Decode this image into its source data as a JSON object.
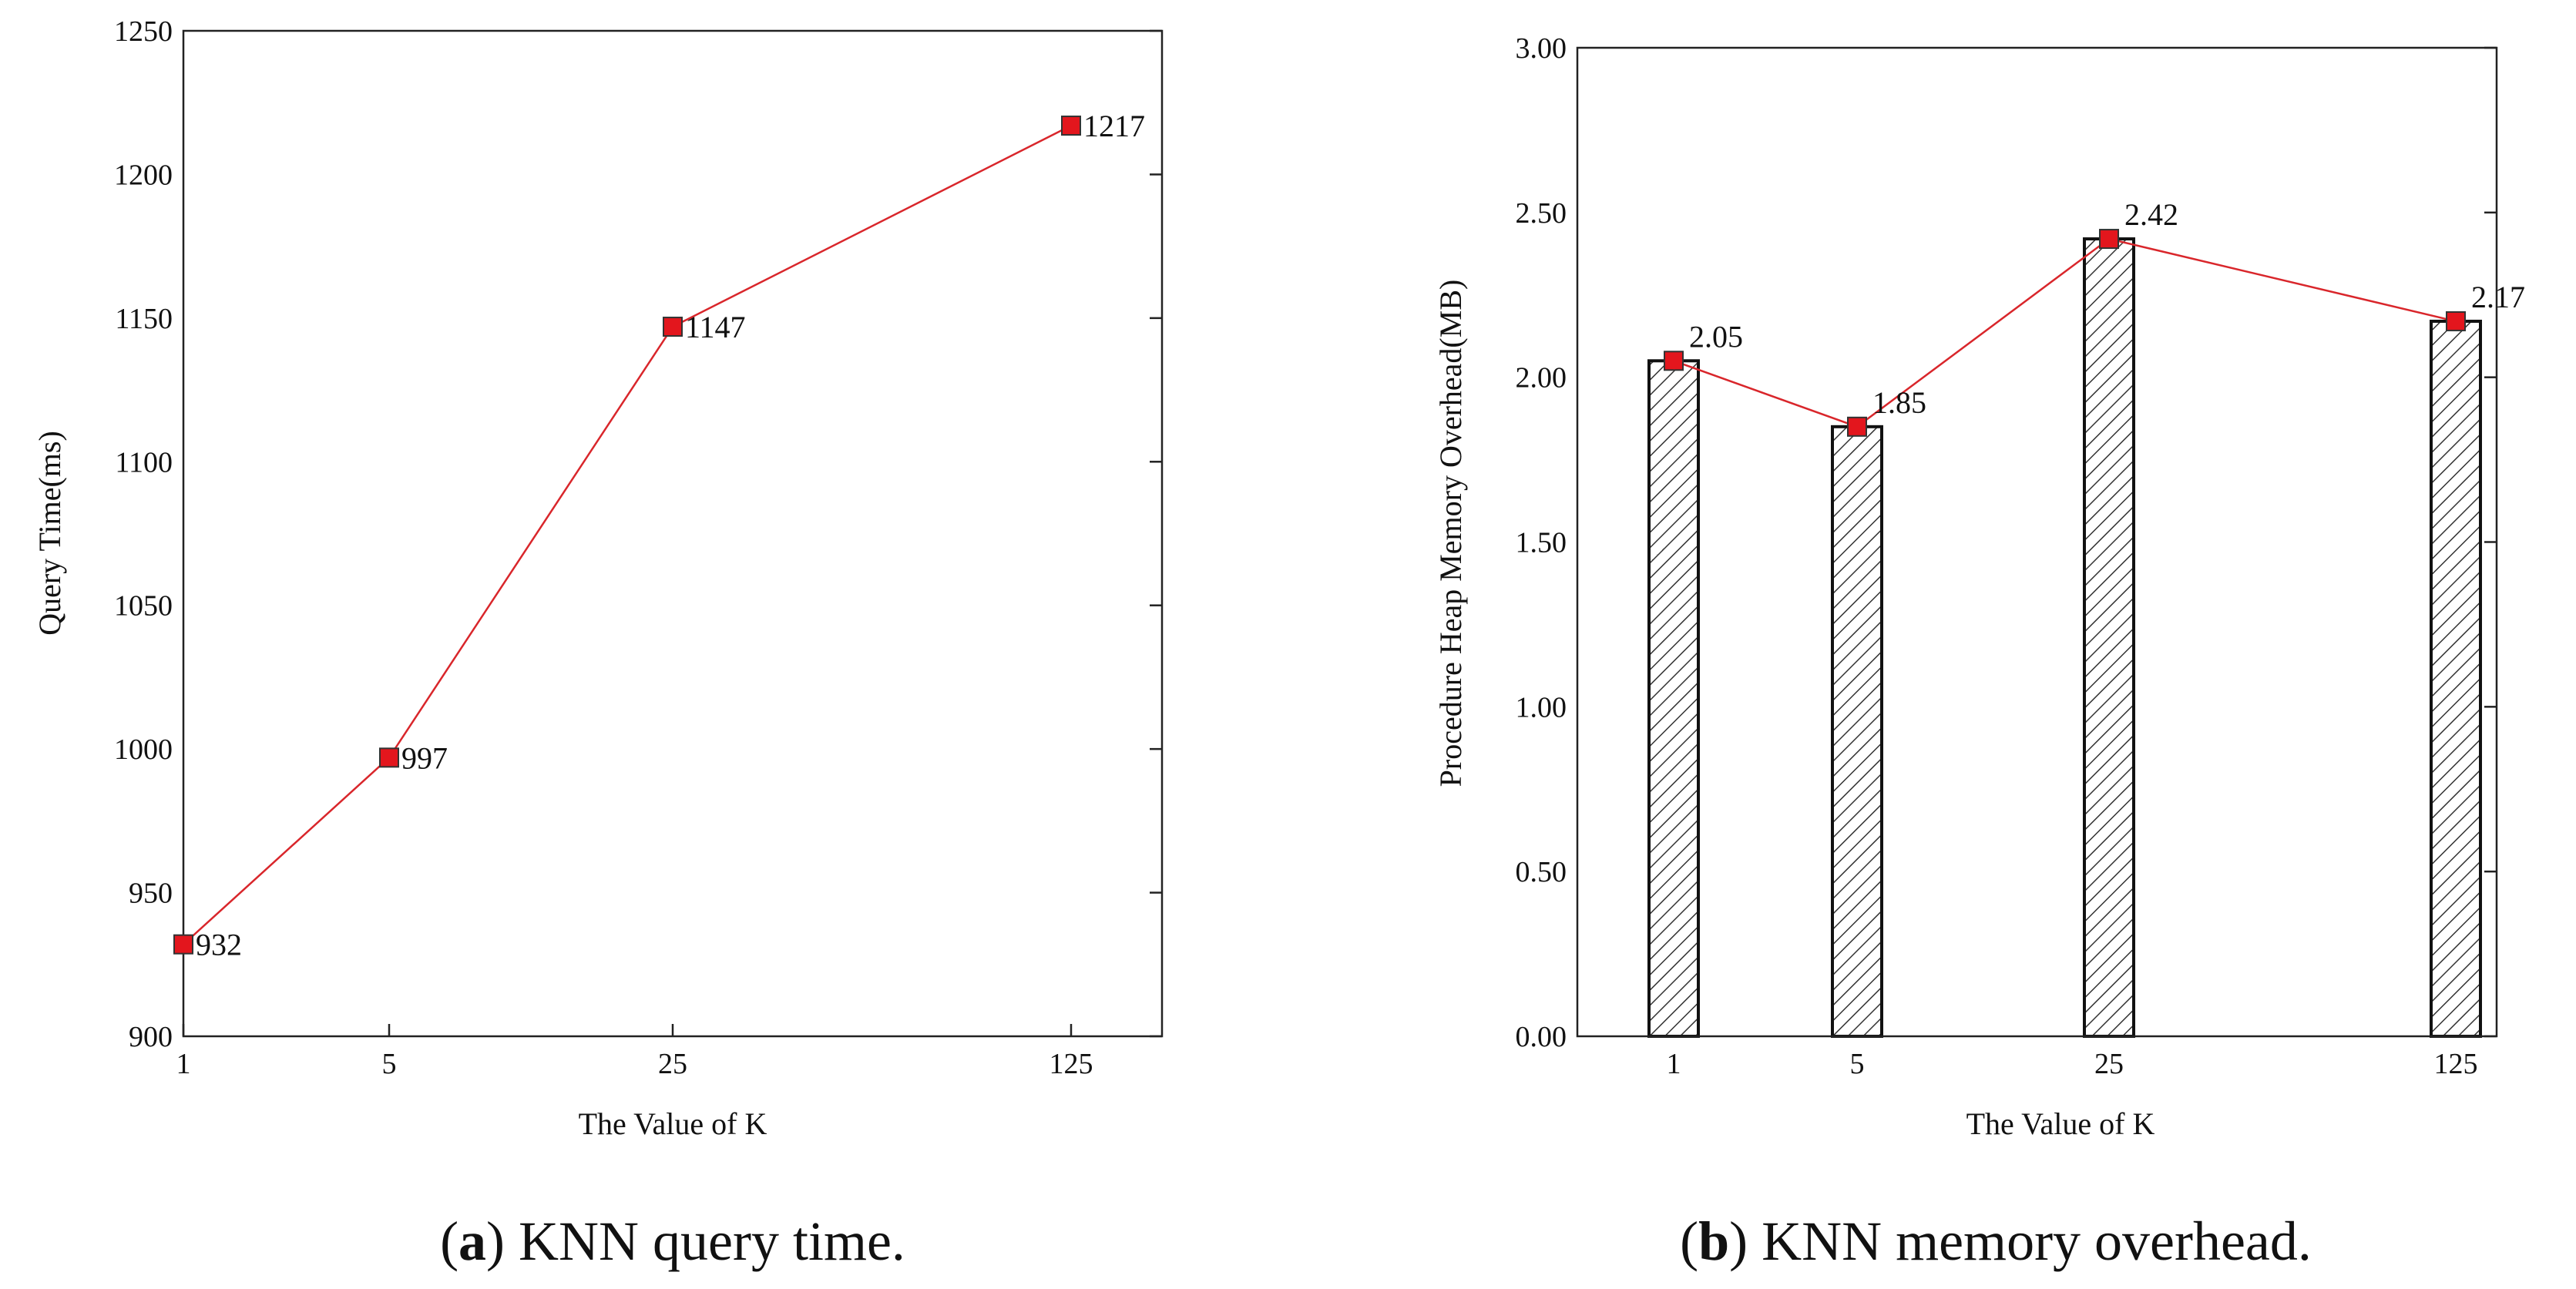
{
  "line_color": "#d9262b",
  "marker_color": "#e3161d",
  "chart_data": [
    {
      "type": "line",
      "title": "",
      "xlabel": "The Value of K",
      "ylabel": "Query Time(ms)",
      "categories": [
        "1",
        "5",
        "25",
        "125"
      ],
      "series": [
        {
          "name": "Query Time",
          "values": [
            932,
            997,
            1147,
            1217
          ]
        }
      ],
      "value_labels": [
        "932",
        "997",
        "1147",
        "1217"
      ],
      "ylim": [
        900,
        1250
      ],
      "y_ticks": [
        900,
        950,
        1000,
        1050,
        1100,
        1150,
        1200,
        1250
      ],
      "y_tick_labels": [
        "900",
        "950",
        "1000",
        "1050",
        "1100",
        "1150",
        "1200",
        "1250"
      ],
      "caption_letter": "a",
      "caption_text": "KNN query time."
    },
    {
      "type": "bar",
      "title": "",
      "xlabel": "The Value of K",
      "ylabel": "Procedure Heap Memory Overhead(MB)",
      "categories": [
        "1",
        "5",
        "25",
        "125"
      ],
      "series": [
        {
          "name": "Memory (bar)",
          "values": [
            2.05,
            1.85,
            2.42,
            2.17
          ]
        },
        {
          "name": "Memory (line)",
          "values": [
            2.05,
            1.85,
            2.42,
            2.17
          ]
        }
      ],
      "value_labels": [
        "2.05",
        "1.85",
        "2.42",
        "2.17"
      ],
      "ylim": [
        0,
        3
      ],
      "y_ticks": [
        0,
        0.5,
        1,
        1.5,
        2,
        2.5,
        3
      ],
      "y_tick_labels": [
        "0.00",
        "0.50",
        "1.00",
        "1.50",
        "2.00",
        "2.50",
        "3.00"
      ],
      "caption_letter": "b",
      "caption_text": "KNN memory overhead."
    }
  ]
}
